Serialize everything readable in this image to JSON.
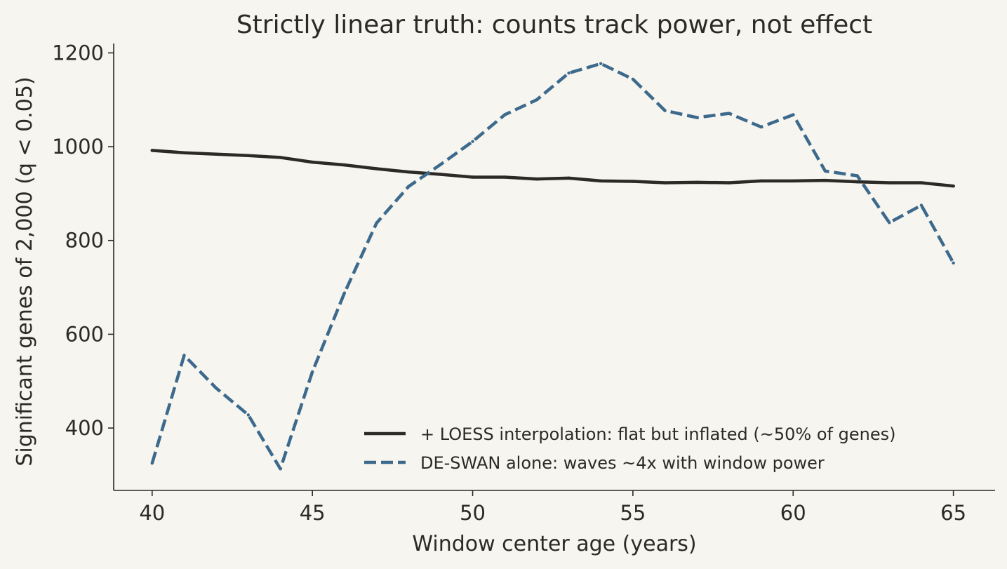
{
  "chart_data": {
    "type": "line",
    "title": "Strictly linear truth: counts track power, not effect",
    "xlabel": "Window center age (years)",
    "ylabel": "Significant genes of 2,000 (q < 0.05)",
    "xlim": [
      38.8,
      66.3
    ],
    "ylim": [
      267,
      1220
    ],
    "xticks": [
      40,
      45,
      50,
      55,
      60,
      65
    ],
    "yticks": [
      400,
      600,
      800,
      1000,
      1200
    ],
    "grid": false,
    "legend_position": "lower-right",
    "x": [
      40,
      41,
      42,
      43,
      44,
      45,
      46,
      47,
      48,
      49,
      50,
      51,
      52,
      53,
      54,
      55,
      56,
      57,
      58,
      59,
      60,
      61,
      62,
      63,
      64,
      65
    ],
    "series": [
      {
        "name": "+ LOESS interpolation: flat but inflated (~50% of genes)",
        "color": "#2b2a26",
        "style": "solid",
        "values": [
          992,
          987,
          984,
          981,
          977,
          967,
          961,
          953,
          946,
          941,
          935,
          935,
          931,
          933,
          927,
          926,
          923,
          924,
          923,
          927,
          927,
          928,
          925,
          923,
          923,
          916
        ]
      },
      {
        "name": "DE-SWAN alone: waves ~4x with window power",
        "color": "#3d6a8c",
        "style": "dashed",
        "values": [
          325,
          555,
          485,
          428,
          313,
          520,
          688,
          837,
          915,
          962,
          1011,
          1068,
          1100,
          1157,
          1177,
          1144,
          1077,
          1062,
          1071,
          1042,
          1068,
          948,
          938,
          838,
          875,
          752
        ]
      }
    ]
  }
}
